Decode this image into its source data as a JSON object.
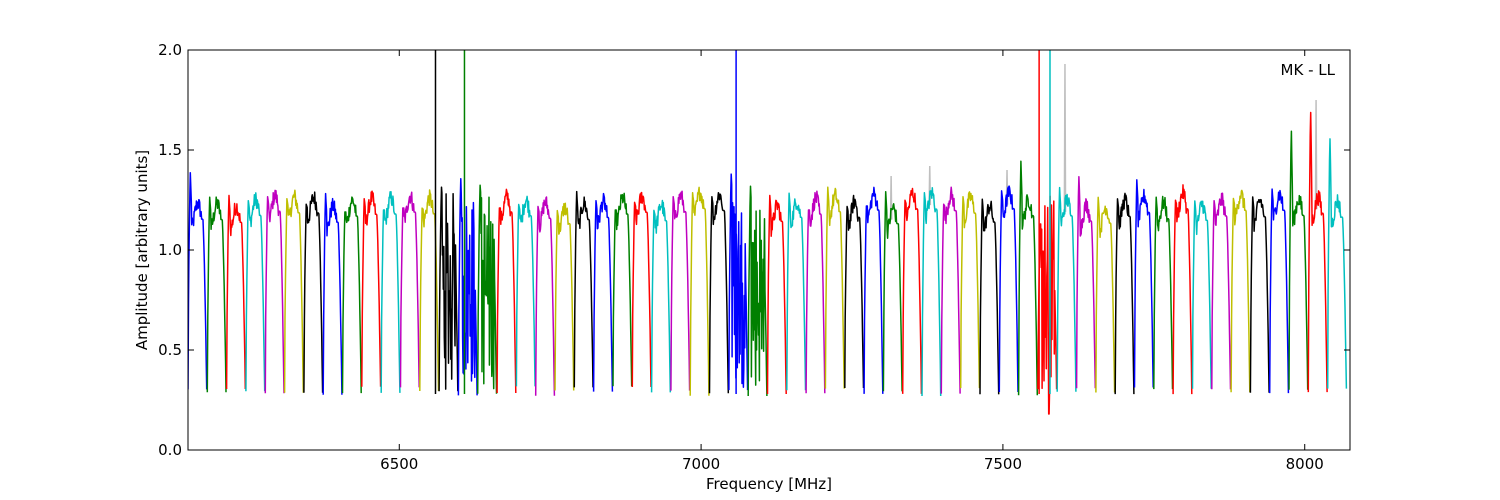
{
  "chart_data": {
    "type": "line",
    "xlabel": "Frequency [MHz]",
    "ylabel": "Amplitude [arbitrary units]",
    "annotation": "MK - LL",
    "xlim": [
      6150,
      8075
    ],
    "ylim": [
      0.0,
      2.0
    ],
    "xticks": [
      6500,
      7000,
      7500,
      8000
    ],
    "yticks": [
      0.0,
      0.5,
      1.0,
      1.5,
      2.0
    ],
    "xtick_labels": [
      "6500",
      "7000",
      "7500",
      "8000"
    ],
    "ytick_labels": [
      "0.0",
      "0.5",
      "1.0",
      "1.5",
      "2.0"
    ],
    "grid": false,
    "channel_width_mhz": 32,
    "color_cycle": [
      "#0000ff",
      "#008000",
      "#ff0000",
      "#00bfbf",
      "#bf00bf",
      "#bfbf00",
      "#000000"
    ],
    "raw_color": "#bfbfbf",
    "channels": [
      {
        "start": 6150,
        "peak": 1.4
      },
      {
        "start": 6182,
        "peak": 1.27
      },
      {
        "start": 6214,
        "peak": 1.28
      },
      {
        "start": 6246,
        "peak": 1.25
      },
      {
        "start": 6278,
        "peak": 1.27
      },
      {
        "start": 6310,
        "peak": 1.26
      },
      {
        "start": 6342,
        "peak": 1.23
      },
      {
        "start": 6374,
        "peak": 1.29
      },
      {
        "start": 6406,
        "peak": 1.19
      },
      {
        "start": 6438,
        "peak": 1.26
      },
      {
        "start": 6470,
        "peak": 1.2
      },
      {
        "start": 6502,
        "peak": 1.21
      },
      {
        "start": 6534,
        "peak": 1.21
      },
      {
        "start": 6566,
        "peak": 1.32,
        "spike_x": 6560,
        "spike_y": 2.0,
        "noisy": true
      },
      {
        "start": 6598,
        "peak": 1.37,
        "noisy": true
      },
      {
        "start": 6630,
        "peak": 1.33,
        "spike_x": 6608,
        "spike_y": 2.0,
        "noisy": true
      },
      {
        "start": 6662,
        "peak": 1.21
      },
      {
        "start": 6694,
        "peak": 1.23
      },
      {
        "start": 6726,
        "peak": 1.22
      },
      {
        "start": 6758,
        "peak": 1.2
      },
      {
        "start": 6790,
        "peak": 1.3
      },
      {
        "start": 6822,
        "peak": 1.25
      },
      {
        "start": 6854,
        "peak": 1.2
      },
      {
        "start": 6886,
        "peak": 1.24
      },
      {
        "start": 6918,
        "peak": 1.2
      },
      {
        "start": 6950,
        "peak": 1.27
      },
      {
        "start": 6982,
        "peak": 1.29
      },
      {
        "start": 7014,
        "peak": 1.27
      },
      {
        "start": 7046,
        "peak": 1.39,
        "spike_x": 7058,
        "spike_y": 2.0,
        "noisy": true
      },
      {
        "start": 7078,
        "peak": 1.33,
        "noisy": true
      },
      {
        "start": 7110,
        "peak": 1.28
      },
      {
        "start": 7142,
        "peak": 1.29
      },
      {
        "start": 7174,
        "peak": 1.2
      },
      {
        "start": 7206,
        "peak": 1.32
      },
      {
        "start": 7238,
        "peak": 1.22
      },
      {
        "start": 7270,
        "peak": 1.22
      },
      {
        "start": 7302,
        "peak": 1.3,
        "raw_spike": 1.37
      },
      {
        "start": 7334,
        "peak": 1.25
      },
      {
        "start": 7366,
        "peak": 1.29,
        "raw_spike": 1.42
      },
      {
        "start": 7398,
        "peak": 1.23
      },
      {
        "start": 7430,
        "peak": 1.27
      },
      {
        "start": 7462,
        "peak": 1.26
      },
      {
        "start": 7494,
        "peak": 1.3,
        "raw_spike": 1.4
      },
      {
        "start": 7526,
        "peak": 1.46
      },
      {
        "start": 7558,
        "peak": 1.13,
        "spike_x": 7560,
        "spike_y": 2.0,
        "noisy": true,
        "dip": 0.18
      },
      {
        "start": 7590,
        "peak": 1.32,
        "spike_x": 7578,
        "spike_y": 2.0,
        "raw_spike": 1.93
      },
      {
        "start": 7622,
        "peak": 1.38
      },
      {
        "start": 7654,
        "peak": 1.27
      },
      {
        "start": 7686,
        "peak": 1.26
      },
      {
        "start": 7718,
        "peak": 1.36
      },
      {
        "start": 7750,
        "peak": 1.27
      },
      {
        "start": 7782,
        "peak": 1.25
      },
      {
        "start": 7814,
        "peak": 1.25
      },
      {
        "start": 7846,
        "peak": 1.25
      },
      {
        "start": 7878,
        "peak": 1.26
      },
      {
        "start": 7910,
        "peak": 1.27
      },
      {
        "start": 7942,
        "peak": 1.31
      },
      {
        "start": 7974,
        "peak": 1.62
      },
      {
        "start": 8006,
        "peak": 1.72,
        "raw_spike": 1.75
      },
      {
        "start": 8038,
        "peak": 1.58
      }
    ]
  }
}
